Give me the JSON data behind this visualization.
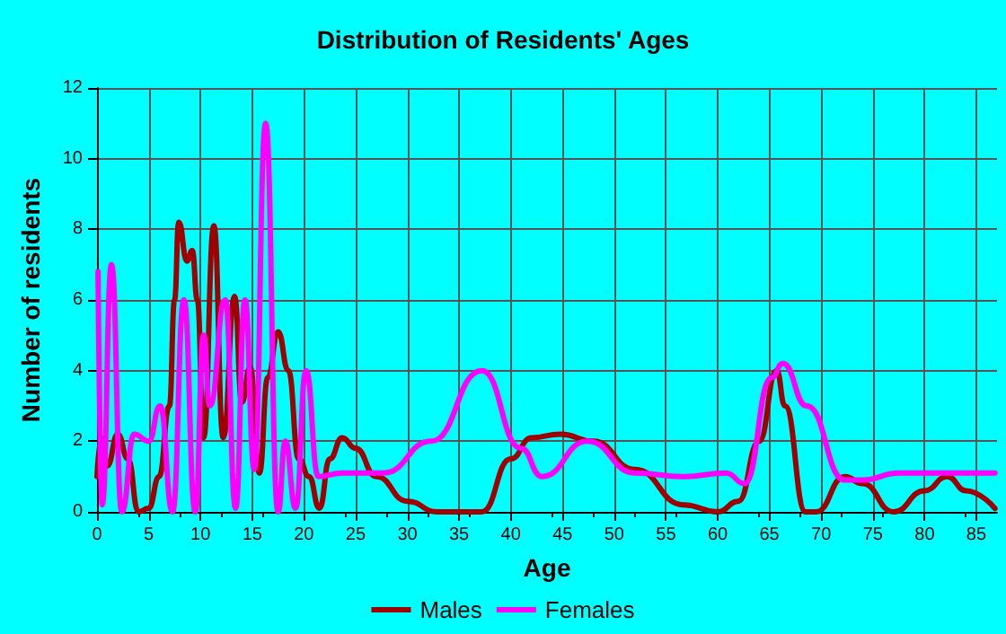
{
  "chart_data": {
    "type": "line",
    "title": "Distribution of Residents' Ages",
    "xlabel": "Age",
    "ylabel": "Number of residents",
    "xlim": [
      0,
      87
    ],
    "xticks": [
      0,
      5,
      10,
      15,
      20,
      25,
      30,
      35,
      40,
      45,
      50,
      55,
      60,
      65,
      70,
      75,
      80,
      85
    ],
    "ylim": [
      0,
      12
    ],
    "yticks": [
      0,
      2,
      4,
      6,
      8,
      10,
      12
    ],
    "grid": true,
    "legend": "bottom",
    "marker": "none",
    "line_style": "solid",
    "series": [
      {
        "name": "Males",
        "color": "#a00000",
        "x": [
          0,
          0.4,
          1,
          2,
          3,
          4,
          5,
          6,
          7,
          7.5,
          7.9,
          8.7,
          9.2,
          9.7,
          10.3,
          11.3,
          12.2,
          13.3,
          14,
          14.8,
          15.7,
          16.5,
          17.5,
          18.5,
          19.5,
          20.5,
          21.5,
          22.5,
          23.7,
          25,
          27,
          30,
          32.9,
          37.2,
          40,
          42,
          44.8,
          48,
          52,
          56.7,
          60,
          62,
          64,
          65.7,
          66.5,
          68.5,
          69.5,
          72.3,
          74,
          77,
          80,
          82.2,
          84,
          86.8
        ],
        "values": [
          1,
          2.1,
          1.3,
          2.2,
          1.5,
          0,
          0.1,
          1,
          3,
          6,
          8.2,
          7.1,
          7.4,
          6,
          2.1,
          8.1,
          2.1,
          6.1,
          3.1,
          4.1,
          1.1,
          3.8,
          5.1,
          4,
          1.5,
          1,
          0.1,
          1.5,
          2.1,
          1.8,
          1,
          0.3,
          0,
          0,
          1.5,
          2.1,
          2.2,
          2,
          1.2,
          0.2,
          0,
          0.3,
          2,
          4,
          3,
          0,
          0,
          1,
          0.8,
          0,
          0.6,
          1,
          0.6,
          0.1
        ]
      },
      {
        "name": "Females",
        "color": "#ff00ff",
        "x": [
          0.1,
          0.5,
          1.4,
          2.4,
          3.6,
          5,
          6.1,
          7.3,
          8.4,
          9.5,
          10.3,
          10.9,
          12.4,
          13.4,
          14.3,
          15.2,
          16.3,
          17.5,
          18.2,
          19.2,
          20.2,
          21.4,
          23.7,
          27.7,
          32.3,
          37.2,
          41,
          43,
          47.4,
          52,
          56.7,
          60.8,
          62.6,
          65.2,
          66.3,
          68.6,
          72.3,
          74,
          77.5,
          86.8
        ],
        "values": [
          6.8,
          0.2,
          7,
          0,
          2.2,
          2,
          3,
          0,
          6,
          0,
          5,
          3,
          6,
          0.1,
          6,
          1.2,
          11,
          0,
          2,
          0.1,
          4,
          1,
          1.1,
          1.1,
          2,
          4,
          1.8,
          1,
          2,
          1.1,
          1,
          1.1,
          0.8,
          3.8,
          4.2,
          3,
          0.9,
          0.9,
          1.1,
          1.1
        ]
      }
    ]
  }
}
